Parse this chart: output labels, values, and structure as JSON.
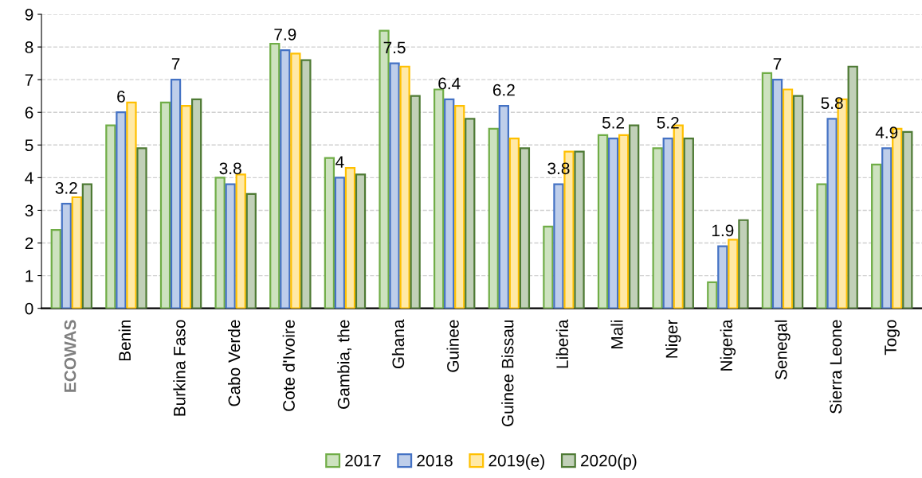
{
  "chart_data": {
    "type": "bar",
    "categories": [
      "ECOWAS",
      "Benin",
      "Burkina Faso",
      "Cabo Verde",
      "Cote d'Ivoire",
      "Gambia, the",
      "Ghana",
      "Guinee",
      "Guinee Bissau",
      "Liberia",
      "Mali",
      "Niger",
      "Nigeria",
      "Senegal",
      "Sierra Leone",
      "Togo"
    ],
    "series": [
      {
        "name": "2017",
        "color": "#70ad47",
        "values": [
          2.4,
          5.6,
          6.3,
          4.0,
          8.1,
          4.6,
          8.5,
          6.7,
          5.5,
          2.5,
          5.3,
          4.9,
          0.8,
          7.2,
          3.8,
          4.4
        ]
      },
      {
        "name": "2018",
        "color": "#4472c4",
        "values": [
          3.2,
          6.0,
          7.0,
          3.8,
          7.9,
          4.0,
          7.5,
          6.4,
          6.2,
          3.8,
          5.2,
          5.2,
          1.9,
          7.0,
          5.8,
          4.9
        ],
        "value_labels": [
          "3.2",
          "6",
          "7",
          "3.8",
          "7.9",
          "4",
          "7.5",
          "6.4",
          "6.2",
          "3.8",
          "5.2",
          "5.2",
          "1.9",
          "7",
          "5.8",
          "4.9"
        ]
      },
      {
        "name": "2019(e)",
        "color": "#ffc000",
        "values": [
          3.4,
          6.3,
          6.2,
          4.1,
          7.8,
          4.3,
          7.4,
          6.2,
          5.2,
          4.8,
          5.3,
          5.6,
          2.1,
          6.7,
          6.4,
          5.5
        ]
      },
      {
        "name": "2020(p)",
        "color": "#4e7a34",
        "values": [
          3.8,
          4.9,
          6.4,
          3.5,
          7.6,
          4.1,
          6.5,
          5.8,
          4.9,
          4.8,
          5.6,
          5.2,
          2.7,
          6.5,
          7.4,
          5.4
        ]
      }
    ],
    "ylim": [
      0,
      9
    ],
    "yticks": [
      0,
      1,
      2,
      3,
      4,
      5,
      6,
      7,
      8,
      9
    ],
    "grid": "y",
    "legend": "bottom"
  }
}
